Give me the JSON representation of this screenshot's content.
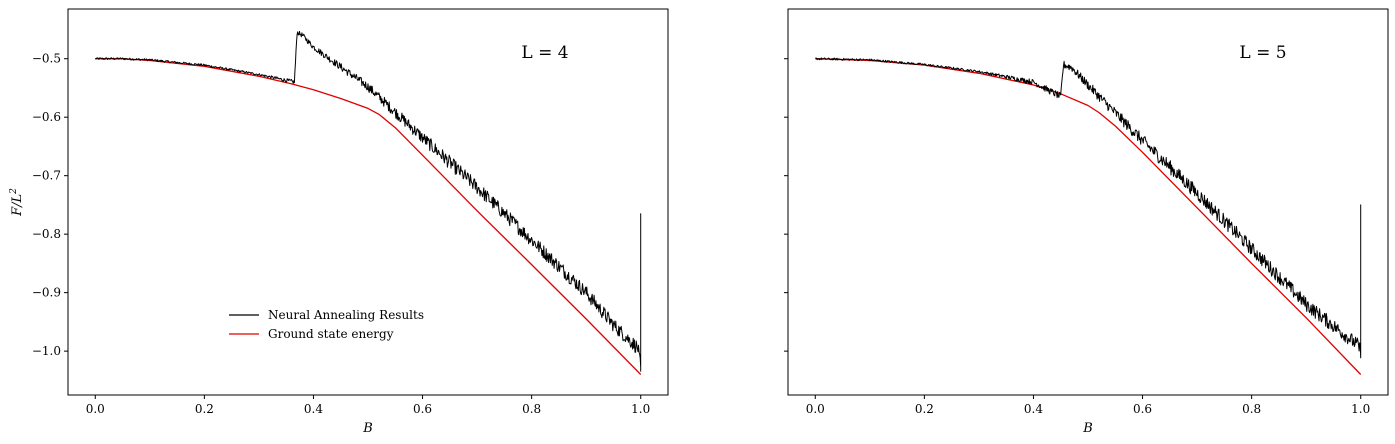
{
  "colors": {
    "neural": "#000000",
    "ground": "#e00000",
    "axes": "#000000",
    "background": "#ffffff"
  },
  "legend": [
    {
      "label": "Neural Annealing Results",
      "color": "#000000"
    },
    {
      "label": "Ground state energy",
      "color": "#e00000"
    }
  ],
  "chart_data": [
    {
      "type": "line",
      "title": "L = 4",
      "xlabel": "B",
      "ylabel": "F/L",
      "ylabel_sup": "2",
      "xlim": [
        -0.05,
        1.05
      ],
      "ylim": [
        -1.075,
        -0.415
      ],
      "xticks": [
        0.0,
        0.2,
        0.4,
        0.6,
        0.8,
        1.0
      ],
      "xtick_labels": [
        "0.0",
        "0.2",
        "0.4",
        "0.6",
        "0.8",
        "1.0"
      ],
      "yticks": [
        -0.5,
        -0.6,
        -0.7,
        -0.8,
        -0.9,
        -1.0
      ],
      "ytick_labels": [
        "−0.5",
        "−0.6",
        "−0.7",
        "−0.8",
        "−0.9",
        "−1.0"
      ],
      "legend_position": "lower-left",
      "series": [
        {
          "name": "Ground state energy",
          "color": "#e00000",
          "x": [
            0.0,
            0.05,
            0.1,
            0.2,
            0.3,
            0.36,
            0.4,
            0.45,
            0.5,
            0.52,
            0.55,
            0.6,
            0.7,
            0.8,
            0.9,
            1.0
          ],
          "y": [
            -0.5,
            -0.5,
            -0.503,
            -0.513,
            -0.53,
            -0.543,
            -0.553,
            -0.568,
            -0.585,
            -0.595,
            -0.618,
            -0.665,
            -0.76,
            -0.852,
            -0.945,
            -1.04
          ]
        },
        {
          "name": "Neural Annealing Results",
          "color": "#000000",
          "x": [
            0.0,
            0.05,
            0.1,
            0.2,
            0.3,
            0.365,
            0.37,
            0.38,
            0.4,
            0.5,
            0.6,
            0.7,
            0.8,
            0.9,
            0.95,
            0.995,
            1.0,
            1.0,
            1.0
          ],
          "y": [
            -0.5,
            -0.5,
            -0.502,
            -0.511,
            -0.527,
            -0.54,
            -0.455,
            -0.46,
            -0.48,
            -0.548,
            -0.635,
            -0.72,
            -0.81,
            -0.9,
            -0.955,
            -0.995,
            -1.03,
            -0.775,
            -1.035
          ],
          "noise": 0.012
        }
      ]
    },
    {
      "type": "line",
      "title": "L = 5",
      "xlabel": "B",
      "xlim": [
        -0.05,
        1.05
      ],
      "ylim": [
        -1.075,
        -0.415
      ],
      "xticks": [
        0.0,
        0.2,
        0.4,
        0.6,
        0.8,
        1.0
      ],
      "xtick_labels": [
        "0.0",
        "0.2",
        "0.4",
        "0.6",
        "0.8",
        "1.0"
      ],
      "yticks": [
        -0.5,
        -0.6,
        -0.7,
        -0.8,
        -0.9,
        -1.0
      ],
      "series": [
        {
          "name": "Ground state energy",
          "color": "#e00000",
          "x": [
            0.0,
            0.1,
            0.2,
            0.3,
            0.4,
            0.45,
            0.5,
            0.52,
            0.55,
            0.6,
            0.7,
            0.8,
            0.9,
            1.0
          ],
          "y": [
            -0.5,
            -0.503,
            -0.511,
            -0.525,
            -0.545,
            -0.56,
            -0.58,
            -0.592,
            -0.615,
            -0.66,
            -0.755,
            -0.85,
            -0.943,
            -1.04
          ]
        },
        {
          "name": "Neural Annealing Results",
          "color": "#000000",
          "x": [
            0.0,
            0.1,
            0.2,
            0.3,
            0.4,
            0.45,
            0.455,
            0.47,
            0.5,
            0.6,
            0.7,
            0.8,
            0.9,
            0.995,
            1.0,
            1.0,
            1.0
          ],
          "y": [
            -0.5,
            -0.502,
            -0.51,
            -0.522,
            -0.54,
            -0.565,
            -0.51,
            -0.515,
            -0.545,
            -0.64,
            -0.73,
            -0.825,
            -0.92,
            -0.99,
            -1.0,
            -0.75,
            -1.0
          ],
          "noise": 0.012
        }
      ]
    }
  ]
}
